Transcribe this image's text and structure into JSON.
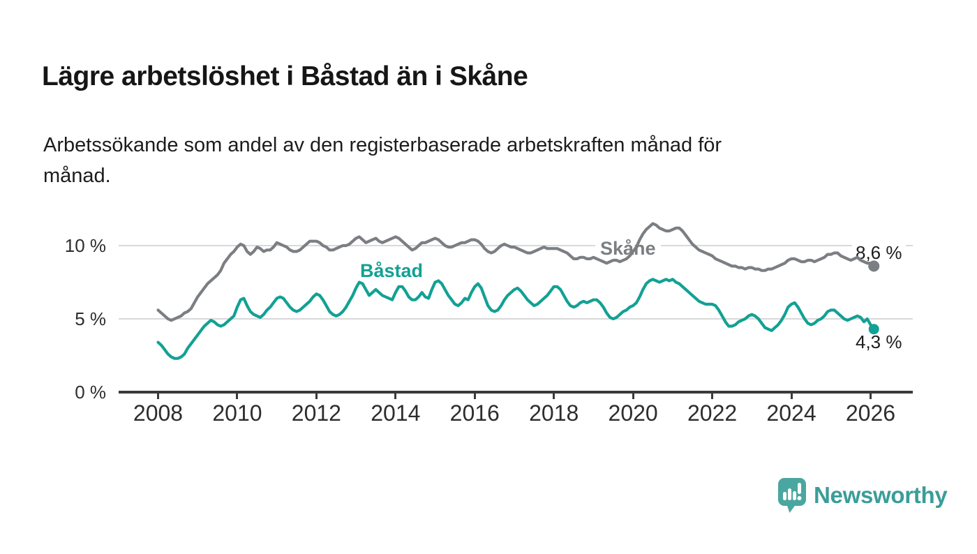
{
  "title": "Lägre arbetslöshet i Båstad än i Skåne",
  "subtitle": {
    "line1": "Arbetssökande som andel av den registerbaserade arbetskraften månad för",
    "line2": "månad."
  },
  "colors": {
    "skane_line": "#7b7e82",
    "bastad_line": "#12a194",
    "brand_teal": "#3a9d99",
    "brand_mark": "#4aa6a1",
    "gridline": "#d9d9d9",
    "axis": "#3a3a3a"
  },
  "footer": {
    "brand": "Newsworthy"
  },
  "chart_data": {
    "type": "line",
    "title": "Lägre arbetslöshet i Båstad än i Skåne",
    "xlabel": "",
    "ylabel": "",
    "unit": "%",
    "frequency": "monthly",
    "start_month": "2008-01",
    "end_month": "2026-02",
    "ylim": [
      0,
      12.5
    ],
    "grid": "horizontal",
    "legend_position": "inline-labels",
    "y_axis": {
      "ticks": [
        {
          "label": "0 %",
          "value": 0
        },
        {
          "label": "5 %",
          "value": 5
        },
        {
          "label": "10 %",
          "value": 10
        }
      ],
      "gridlines": [
        5,
        10
      ]
    },
    "x_axis": {
      "ticks": [
        {
          "label": "2008",
          "year": 2008
        },
        {
          "label": "2010",
          "year": 2010
        },
        {
          "label": "2012",
          "year": 2012
        },
        {
          "label": "2014",
          "year": 2014
        },
        {
          "label": "2016",
          "year": 2016
        },
        {
          "label": "2018",
          "year": 2018
        },
        {
          "label": "2020",
          "year": 2020
        },
        {
          "label": "2022",
          "year": 2022
        },
        {
          "label": "2024",
          "year": 2024
        },
        {
          "label": "2026",
          "year": 2026
        }
      ]
    },
    "series": [
      {
        "name": "Skåne",
        "color": "#7b7e82",
        "end_label": "8,6 %",
        "end_value": 8.6,
        "values": [
          5.6,
          5.4,
          5.2,
          5.0,
          4.9,
          5.0,
          5.1,
          5.2,
          5.4,
          5.5,
          5.7,
          6.1,
          6.5,
          6.8,
          7.1,
          7.4,
          7.6,
          7.8,
          8.0,
          8.3,
          8.8,
          9.1,
          9.4,
          9.6,
          9.9,
          10.1,
          10.0,
          9.6,
          9.4,
          9.6,
          9.9,
          9.8,
          9.6,
          9.7,
          9.7,
          9.9,
          10.2,
          10.1,
          10.0,
          9.9,
          9.7,
          9.6,
          9.6,
          9.7,
          9.9,
          10.1,
          10.3,
          10.3,
          10.3,
          10.2,
          10.0,
          9.9,
          9.7,
          9.7,
          9.8,
          9.9,
          10.0,
          10.0,
          10.1,
          10.3,
          10.5,
          10.6,
          10.4,
          10.2,
          10.3,
          10.4,
          10.5,
          10.3,
          10.2,
          10.3,
          10.4,
          10.5,
          10.6,
          10.5,
          10.3,
          10.1,
          9.9,
          9.7,
          9.8,
          10.0,
          10.2,
          10.2,
          10.3,
          10.4,
          10.5,
          10.4,
          10.2,
          10.0,
          9.9,
          9.9,
          10.0,
          10.1,
          10.2,
          10.2,
          10.3,
          10.4,
          10.4,
          10.3,
          10.1,
          9.8,
          9.6,
          9.5,
          9.6,
          9.8,
          10.0,
          10.1,
          10.0,
          9.9,
          9.9,
          9.8,
          9.7,
          9.6,
          9.5,
          9.5,
          9.6,
          9.7,
          9.8,
          9.9,
          9.8,
          9.8,
          9.8,
          9.8,
          9.7,
          9.6,
          9.5,
          9.3,
          9.1,
          9.1,
          9.2,
          9.2,
          9.1,
          9.1,
          9.2,
          9.1,
          9.0,
          8.9,
          8.8,
          8.9,
          9.0,
          9.0,
          8.9,
          9.0,
          9.1,
          9.3,
          9.6,
          9.9,
          10.4,
          10.8,
          11.1,
          11.3,
          11.5,
          11.4,
          11.2,
          11.1,
          11.0,
          11.0,
          11.1,
          11.2,
          11.2,
          11.0,
          10.7,
          10.4,
          10.1,
          9.9,
          9.7,
          9.6,
          9.5,
          9.4,
          9.3,
          9.1,
          9.0,
          8.9,
          8.8,
          8.7,
          8.6,
          8.6,
          8.5,
          8.5,
          8.4,
          8.5,
          8.5,
          8.4,
          8.4,
          8.3,
          8.3,
          8.4,
          8.4,
          8.5,
          8.6,
          8.7,
          8.8,
          9.0,
          9.1,
          9.1,
          9.0,
          8.9,
          8.9,
          9.0,
          9.0,
          8.9,
          9.0,
          9.1,
          9.2,
          9.4,
          9.4,
          9.5,
          9.5,
          9.3,
          9.2,
          9.1,
          9.0,
          9.1,
          9.2,
          9.0,
          8.9,
          8.8,
          8.8,
          8.6
        ]
      },
      {
        "name": "Båstad",
        "color": "#12a194",
        "end_label": "4,3 %",
        "end_value": 4.3,
        "values": [
          3.4,
          3.2,
          2.9,
          2.6,
          2.4,
          2.3,
          2.3,
          2.4,
          2.6,
          3.0,
          3.3,
          3.6,
          3.9,
          4.2,
          4.5,
          4.7,
          4.9,
          4.8,
          4.6,
          4.5,
          4.6,
          4.8,
          5.0,
          5.2,
          5.8,
          6.3,
          6.4,
          5.9,
          5.5,
          5.3,
          5.2,
          5.1,
          5.3,
          5.6,
          5.8,
          6.1,
          6.4,
          6.5,
          6.4,
          6.1,
          5.8,
          5.6,
          5.5,
          5.6,
          5.8,
          6.0,
          6.2,
          6.5,
          6.7,
          6.6,
          6.3,
          5.9,
          5.5,
          5.3,
          5.2,
          5.3,
          5.5,
          5.8,
          6.2,
          6.6,
          7.1,
          7.5,
          7.4,
          7.0,
          6.6,
          6.8,
          7.0,
          6.8,
          6.6,
          6.5,
          6.4,
          6.3,
          6.8,
          7.2,
          7.2,
          6.9,
          6.5,
          6.3,
          6.3,
          6.5,
          6.8,
          6.5,
          6.4,
          7.0,
          7.5,
          7.6,
          7.4,
          7.0,
          6.6,
          6.3,
          6.0,
          5.9,
          6.1,
          6.4,
          6.3,
          6.8,
          7.2,
          7.4,
          7.1,
          6.5,
          5.9,
          5.6,
          5.5,
          5.6,
          5.9,
          6.3,
          6.6,
          6.8,
          7.0,
          7.1,
          6.9,
          6.6,
          6.3,
          6.1,
          5.9,
          6.0,
          6.2,
          6.4,
          6.6,
          6.9,
          7.2,
          7.2,
          7.0,
          6.6,
          6.2,
          5.9,
          5.8,
          5.9,
          6.1,
          6.2,
          6.1,
          6.2,
          6.3,
          6.3,
          6.1,
          5.8,
          5.4,
          5.1,
          5.0,
          5.1,
          5.3,
          5.5,
          5.6,
          5.8,
          5.9,
          6.1,
          6.5,
          7.0,
          7.4,
          7.6,
          7.7,
          7.6,
          7.5,
          7.6,
          7.7,
          7.6,
          7.7,
          7.5,
          7.4,
          7.2,
          7.0,
          6.8,
          6.6,
          6.4,
          6.2,
          6.1,
          6.0,
          6.0,
          6.0,
          5.9,
          5.6,
          5.2,
          4.8,
          4.5,
          4.5,
          4.6,
          4.8,
          4.9,
          5.0,
          5.2,
          5.3,
          5.2,
          5.0,
          4.7,
          4.4,
          4.3,
          4.2,
          4.4,
          4.6,
          4.9,
          5.3,
          5.8,
          6.0,
          6.1,
          5.8,
          5.4,
          5.0,
          4.7,
          4.6,
          4.7,
          4.9,
          5.0,
          5.2,
          5.5,
          5.6,
          5.6,
          5.4,
          5.2,
          5.0,
          4.9,
          5.0,
          5.1,
          5.2,
          5.1,
          4.8,
          5.0,
          4.6,
          4.3
        ]
      }
    ]
  }
}
